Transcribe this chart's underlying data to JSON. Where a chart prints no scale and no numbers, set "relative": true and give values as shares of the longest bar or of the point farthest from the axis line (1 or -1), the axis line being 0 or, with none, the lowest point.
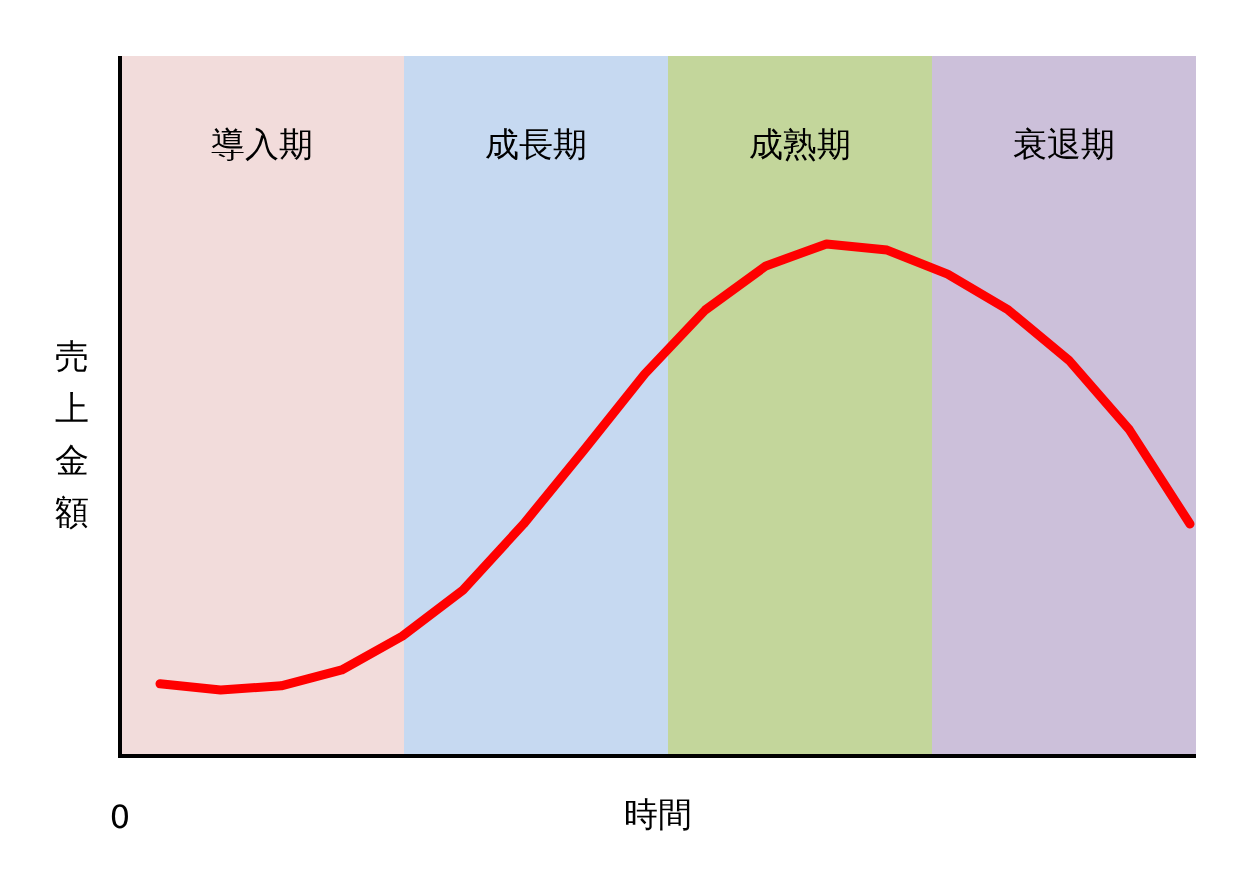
{
  "chart_data": {
    "type": "line",
    "relative": true,
    "xlabel": "時間",
    "ylabel": "売上金額",
    "categories": [
      null,
      null,
      null,
      null,
      null,
      null,
      null,
      null,
      null,
      null,
      null,
      null,
      null,
      null,
      null,
      null,
      null,
      null
    ],
    "series": [
      {
        "color": "#ff0000",
        "values": [
          0.141,
          0.129,
          0.137,
          0.168,
          0.234,
          0.324,
          0.453,
          0.598,
          0.746,
          0.871,
          0.957,
          1,
          0.988,
          0.941,
          0.871,
          0.773,
          0.637,
          0.453
        ]
      }
    ],
    "annotations": [
      "導入期",
      "成長期",
      "成熟期",
      "衰退期",
      "0"
    ],
    "line_style": "solid"
  }
}
